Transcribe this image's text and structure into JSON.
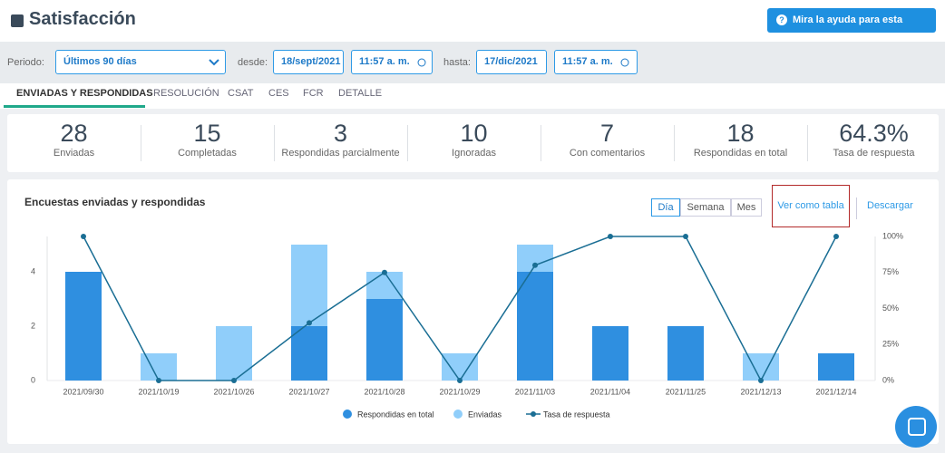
{
  "header": {
    "title": "Satisfacción",
    "help_button": "Mira la ayuda para esta sección"
  },
  "filters": {
    "period_label": "Periodo:",
    "period": "Últimos 90 días",
    "from_label": "desde:",
    "from_date": "18/sept/2021",
    "from_time": "11:57 a. m.",
    "to_label": "hasta:",
    "to_date": "17/dic/2021",
    "to_time": "11:57 a. m."
  },
  "tabs": [
    "ENVIADAS Y RESPONDIDAS",
    "RESOLUCIÓN",
    "CSAT",
    "CES",
    "FCR",
    "DETALLE"
  ],
  "stats": [
    {
      "value": 28,
      "label": "Enviadas"
    },
    {
      "value": 15,
      "label": "Completadas"
    },
    {
      "value": 3,
      "label": "Respondidas parcialmente"
    },
    {
      "value": 10,
      "label": "Ignoradas"
    },
    {
      "value": 7,
      "label": "Con comentarios"
    },
    {
      "value": 18,
      "label": "Respondidas en total"
    },
    {
      "value": "64.3%",
      "label": "Tasa de respuesta"
    }
  ],
  "chart_controls": {
    "granularity": [
      "Día",
      "Semana",
      "Mes"
    ],
    "table_link": "Ver como tabla",
    "download": "Descargar"
  },
  "chart_data": {
    "type": "bar",
    "title": "Encuestas enviadas y respondidas",
    "categories": [
      "2021/09/30",
      "2021/10/19",
      "2021/10/26",
      "2021/10/27",
      "2021/10/28",
      "2021/10/29",
      "2021/11/03",
      "2021/11/04",
      "2021/11/25",
      "2021/12/13",
      "2021/12/14"
    ],
    "series": [
      {
        "name": "Respondidas en total",
        "color": "#2f8fe0",
        "values": [
          4,
          0,
          0,
          2,
          3,
          0,
          4,
          2,
          2,
          0,
          1
        ]
      },
      {
        "name": "Enviadas",
        "color": "#90cefa",
        "values": [
          4,
          1,
          2,
          5,
          4,
          1,
          5,
          2,
          2,
          1,
          1
        ]
      },
      {
        "name": "Tasa de respuesta",
        "type": "line",
        "axis": "y2",
        "color": "#1a6e94",
        "values": [
          100,
          0,
          0,
          40,
          75,
          0,
          80,
          100,
          100,
          0,
          100
        ]
      }
    ],
    "ylim": [
      0,
      5.3
    ],
    "yticks": [
      0,
      2,
      4
    ],
    "y2lim": [
      0,
      100
    ],
    "y2ticks": [
      {
        "value": 0,
        "label": "0%"
      },
      {
        "value": 25,
        "label": "25%"
      },
      {
        "value": 50,
        "label": "50%"
      },
      {
        "value": 75,
        "label": "75%"
      },
      {
        "value": 100,
        "label": "100%"
      }
    ],
    "grid": false,
    "legend": "bottom"
  }
}
